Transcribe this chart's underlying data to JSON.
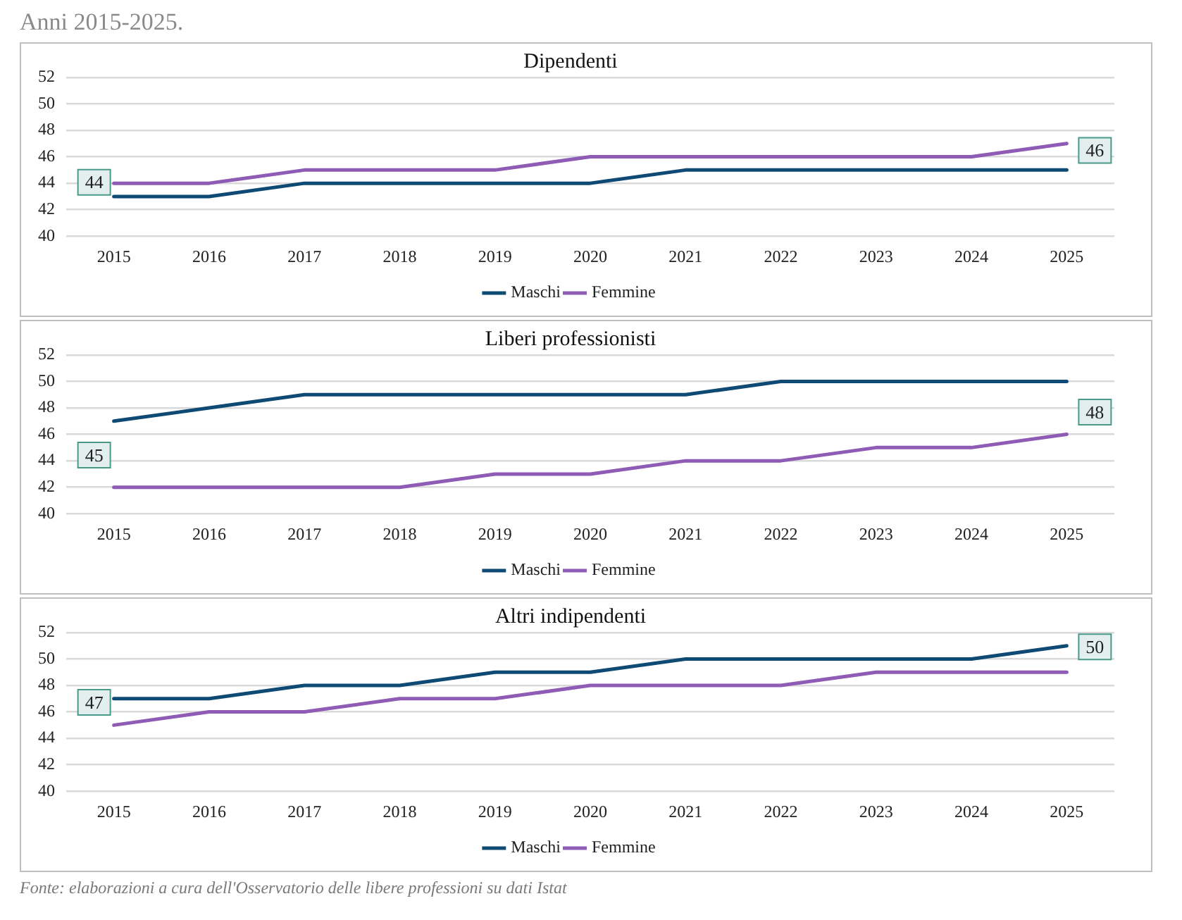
{
  "chart_data": [
    {
      "type": "line",
      "title": "Dipendenti",
      "annotations": [
        "Anni 2015-2025.",
        "44",
        "46"
      ],
      "categories": [
        "2015",
        "2016",
        "2017",
        "2018",
        "2019",
        "2020",
        "2021",
        "2022",
        "2023",
        "2024",
        "2025"
      ],
      "series": [
        {
          "name": "Maschi",
          "color": "#0e4a74",
          "values": [
            43,
            43,
            44,
            44,
            44,
            44,
            45,
            45,
            45,
            45,
            45
          ]
        },
        {
          "name": "Femmine",
          "color": "#8e5bb5",
          "values": [
            44,
            44,
            45,
            45,
            45,
            46,
            46,
            46,
            46,
            46,
            47
          ]
        }
      ],
      "ylim": [
        40,
        52
      ],
      "yticks": [
        40,
        42,
        44,
        46,
        48,
        50,
        52
      ],
      "grid": "y",
      "legend": "bottom",
      "marker": "none",
      "line_style": "solid"
    },
    {
      "type": "line",
      "title": "Liberi professionisti",
      "annotations": [
        "45",
        "48"
      ],
      "categories": [
        "2015",
        "2016",
        "2017",
        "2018",
        "2019",
        "2020",
        "2021",
        "2022",
        "2023",
        "2024",
        "2025"
      ],
      "series": [
        {
          "name": "Maschi",
          "color": "#0e4a74",
          "values": [
            47,
            48,
            49,
            49,
            49,
            49,
            49,
            50,
            50,
            50,
            50
          ]
        },
        {
          "name": "Femmine",
          "color": "#8e5bb5",
          "values": [
            42,
            42,
            42,
            42,
            43,
            43,
            44,
            44,
            45,
            45,
            46
          ]
        }
      ],
      "ylim": [
        40,
        52
      ],
      "yticks": [
        40,
        42,
        44,
        46,
        48,
        50,
        52
      ],
      "grid": "y",
      "legend": "bottom",
      "marker": "none",
      "line_style": "solid"
    },
    {
      "type": "line",
      "title": "Altri indipendenti",
      "annotations": [
        "47",
        "50",
        "Fonte: elaborazioni a cura dell'Osservatorio delle libere professioni su dati Istat"
      ],
      "categories": [
        "2015",
        "2016",
        "2017",
        "2018",
        "2019",
        "2020",
        "2021",
        "2022",
        "2023",
        "2024",
        "2025"
      ],
      "series": [
        {
          "name": "Maschi",
          "color": "#0e4a74",
          "values": [
            47,
            47,
            48,
            48,
            49,
            49,
            50,
            50,
            50,
            50,
            51
          ]
        },
        {
          "name": "Femmine",
          "color": "#8e5bb5",
          "values": [
            45,
            46,
            46,
            47,
            47,
            48,
            48,
            48,
            49,
            49,
            49
          ]
        }
      ],
      "ylim": [
        40,
        52
      ],
      "yticks": [
        40,
        42,
        44,
        46,
        48,
        50,
        52
      ],
      "grid": "y",
      "legend": "bottom",
      "marker": "none",
      "line_style": "solid"
    }
  ]
}
